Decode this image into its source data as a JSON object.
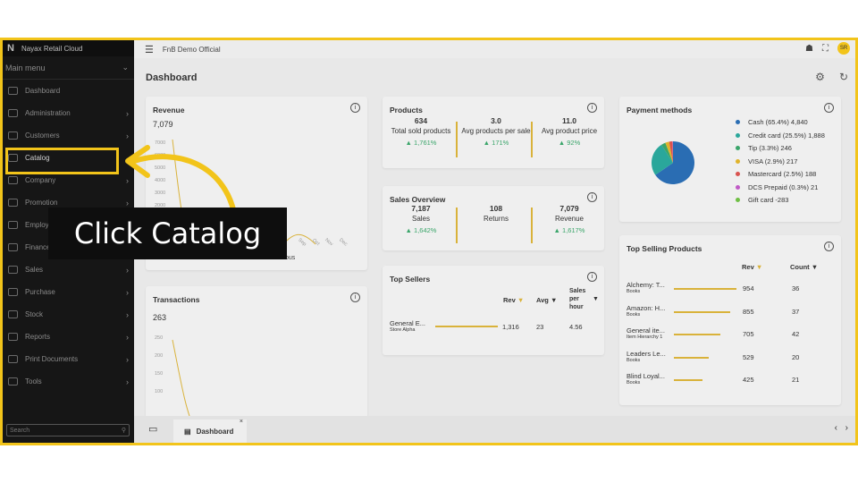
{
  "app": {
    "brand": "Nayax Retail Cloud",
    "org": "FnB Demo Official",
    "avatar_initials": "SR"
  },
  "sidebar": {
    "menu_title": "Main menu",
    "items": [
      {
        "label": "Dashboard",
        "icon": "dashboard-icon",
        "chevron": false
      },
      {
        "label": "Administration",
        "icon": "admin-icon",
        "chevron": true
      },
      {
        "label": "Customers",
        "icon": "customers-icon",
        "chevron": true
      },
      {
        "label": "Catalog",
        "icon": "catalog-icon",
        "chevron": false
      },
      {
        "label": "Company",
        "icon": "company-icon",
        "chevron": true
      },
      {
        "label": "Promotion",
        "icon": "promotion-icon",
        "chevron": true
      },
      {
        "label": "Employees",
        "icon": "employees-icon",
        "chevron": true
      },
      {
        "label": "Finance",
        "icon": "finance-icon",
        "chevron": true
      },
      {
        "label": "Sales",
        "icon": "sales-icon",
        "chevron": true
      },
      {
        "label": "Purchase",
        "icon": "purchase-icon",
        "chevron": true
      },
      {
        "label": "Stock",
        "icon": "stock-icon",
        "chevron": true
      },
      {
        "label": "Reports",
        "icon": "reports-icon",
        "chevron": true
      },
      {
        "label": "Print Documents",
        "icon": "print-icon",
        "chevron": true
      },
      {
        "label": "Tools",
        "icon": "tools-icon",
        "chevron": true
      }
    ],
    "search_placeholder": "Search"
  },
  "dashboard": {
    "title": "Dashboard",
    "revenue": {
      "title": "Revenue",
      "total": "7,079",
      "yticks": [
        "7000",
        "6000",
        "5000",
        "4000",
        "3000",
        "2000"
      ],
      "xticks": [
        "Sep",
        "Oct",
        "Nov",
        "Dec"
      ],
      "legend": "Previous"
    },
    "transactions": {
      "title": "Transactions",
      "total": "263",
      "yticks": [
        "250",
        "200",
        "150",
        "100"
      ]
    },
    "products": {
      "title": "Products",
      "kpis": [
        {
          "value": "634",
          "label": "Total sold products",
          "delta": "▲ 1,761%"
        },
        {
          "value": "3.0",
          "label": "Avg products per sale",
          "delta": "▲ 171%"
        },
        {
          "value": "11.0",
          "label": "Avg product price",
          "delta": "▲ 92%"
        }
      ]
    },
    "sales_overview": {
      "title": "Sales Overview",
      "kpis": [
        {
          "value": "7,187",
          "label": "Sales",
          "delta": "▲ 1,642%"
        },
        {
          "value": "108",
          "label": "Returns",
          "delta": ""
        },
        {
          "value": "7,079",
          "label": "Revenue",
          "delta": "▲ 1,617%"
        }
      ]
    },
    "top_sellers": {
      "title": "Top Sellers",
      "headers": {
        "rev": "Rev",
        "avg": "Avg",
        "sales": "Sales per hour"
      },
      "rows": [
        {
          "name": "General E...",
          "sub": "Store Alpha",
          "rev": "1,316",
          "avg": "23",
          "sph": "4.56",
          "share": 1.0
        }
      ]
    },
    "payment_methods": {
      "title": "Payment methods",
      "items": [
        {
          "label": "Cash (65.4%) 4,840",
          "color": "#2a6db3"
        },
        {
          "label": "Credit card (25.5%) 1,888",
          "color": "#2aa79b"
        },
        {
          "label": "Tip (3.3%) 246",
          "color": "#3aa56a"
        },
        {
          "label": "VISA (2.9%) 217",
          "color": "#e0b32a"
        },
        {
          "label": "Mastercard (2.5%) 188",
          "color": "#d9534f"
        },
        {
          "label": "DCS Prepaid (0.3%) 21",
          "color": "#c05ac6"
        },
        {
          "label": "Gift card -283",
          "color": "#6fbf45"
        }
      ]
    },
    "top_products": {
      "title": "Top Selling Products",
      "headers": {
        "rev": "Rev",
        "count": "Count"
      },
      "rows": [
        {
          "name": "Alchemy: T...",
          "sub": "Books",
          "rev": "954",
          "count": "36",
          "share": 1.0
        },
        {
          "name": "Amazon: H...",
          "sub": "Books",
          "rev": "855",
          "count": "37",
          "share": 0.9
        },
        {
          "name": "General ite...",
          "sub": "Item Hierarchy 1",
          "rev": "705",
          "count": "42",
          "share": 0.74
        },
        {
          "name": "Leaders Le...",
          "sub": "Books",
          "rev": "529",
          "count": "20",
          "share": 0.55
        },
        {
          "name": "Blind Loyal...",
          "sub": "Books",
          "rev": "425",
          "count": "21",
          "share": 0.45
        }
      ]
    }
  },
  "bottom": {
    "tab_label": "Dashboard"
  },
  "overlay": {
    "tooltip": "Click Catalog"
  }
}
